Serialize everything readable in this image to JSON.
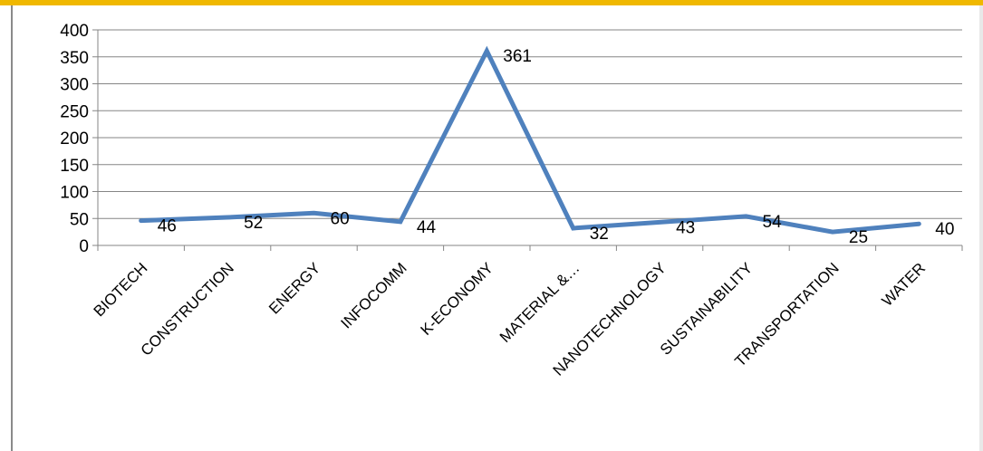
{
  "chart_data": {
    "type": "line",
    "title": "",
    "xlabel": "",
    "ylabel": "",
    "categories": [
      "BIOTECH",
      "CONSTRUCTION",
      "ENERGY",
      "INFOCOMM",
      "K-ECONOMY",
      "MATERIAL &…",
      "NANOTECHNOLOGY",
      "SUSTAINABILITY",
      "TRANSPORTATION",
      "WATER"
    ],
    "series": [
      {
        "values": [
          46,
          52,
          60,
          44,
          361,
          32,
          43,
          54,
          25,
          40
        ]
      }
    ],
    "ylim": [
      0,
      400
    ],
    "yticks": [
      0,
      50,
      100,
      150,
      200,
      250,
      300,
      350,
      400
    ],
    "grid": true,
    "legend": "none",
    "line_color": "#4f81bd",
    "grid_color": "#868686"
  }
}
